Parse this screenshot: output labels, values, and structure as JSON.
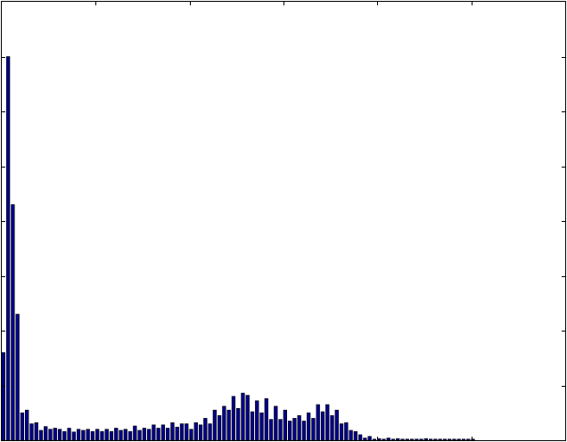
{
  "chart_data": {
    "type": "bar",
    "title": "",
    "xlabel": "",
    "ylabel": "",
    "tick_labels_shown": false,
    "grid": false,
    "legend": "none",
    "bar_color": "#00008b",
    "bar_edge_color": "#000000",
    "xlim": [
      0,
      120
    ],
    "ylim": [
      0,
      8
    ],
    "x_ticks": [
      20,
      40,
      60,
      80,
      100
    ],
    "y_ticks": [
      1,
      2,
      3,
      4,
      5,
      6,
      7
    ],
    "bar_width": 0.7,
    "values": [
      1.6,
      7.0,
      4.3,
      2.3,
      0.5,
      0.55,
      0.3,
      0.32,
      0.18,
      0.25,
      0.2,
      0.22,
      0.2,
      0.16,
      0.22,
      0.15,
      0.2,
      0.18,
      0.2,
      0.16,
      0.2,
      0.16,
      0.2,
      0.16,
      0.22,
      0.18,
      0.2,
      0.16,
      0.26,
      0.18,
      0.22,
      0.2,
      0.28,
      0.22,
      0.28,
      0.22,
      0.32,
      0.24,
      0.3,
      0.3,
      0.2,
      0.32,
      0.28,
      0.4,
      0.3,
      0.55,
      0.45,
      0.62,
      0.55,
      0.8,
      0.58,
      0.86,
      0.82,
      0.52,
      0.72,
      0.5,
      0.76,
      0.38,
      0.62,
      0.38,
      0.55,
      0.35,
      0.4,
      0.45,
      0.35,
      0.5,
      0.4,
      0.65,
      0.52,
      0.65,
      0.45,
      0.55,
      0.3,
      0.32,
      0.18,
      0.16,
      0.1,
      0.04,
      0.07,
      0.02,
      0.03,
      0.02,
      0.04,
      0.02,
      0.03,
      0.02,
      0.02,
      0.02,
      0.02,
      0.02,
      0.03,
      0.02,
      0.02,
      0.02,
      0.02,
      0.02,
      0.02,
      0.02,
      0.02,
      0.02,
      0.02,
      0.0,
      0.0,
      0.0,
      0.0,
      0.0,
      0.0,
      0.0,
      0.0,
      0.0,
      0.0,
      0.0,
      0.0,
      0.0,
      0.0,
      0.0,
      0.0,
      0.0,
      0.0,
      0.0
    ]
  }
}
